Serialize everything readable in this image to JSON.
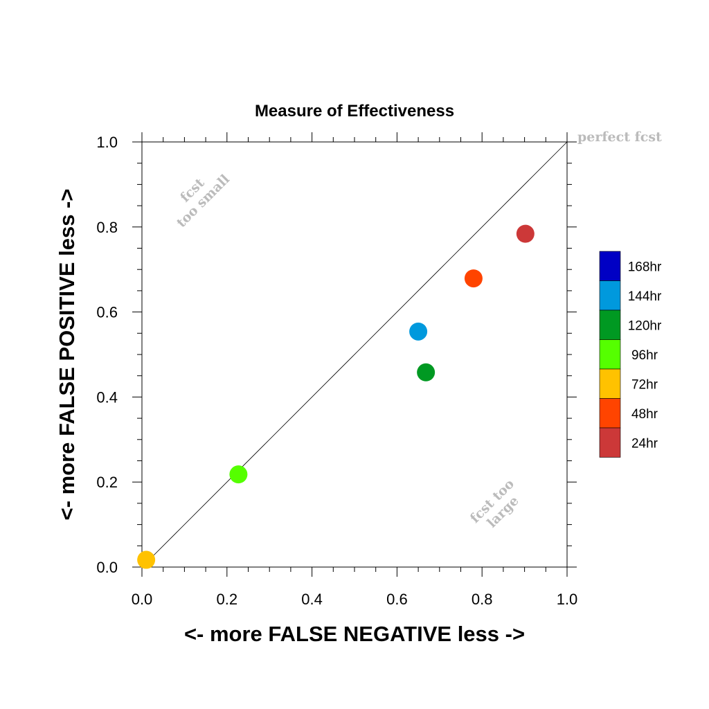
{
  "chart_data": {
    "type": "scatter",
    "title": "Measure of Effectiveness",
    "xlabel": "<- more   FALSE NEGATIVE   less ->",
    "ylabel": "<- more   FALSE POSITIVE   less ->",
    "xlim": [
      0,
      1
    ],
    "ylim": [
      0,
      1
    ],
    "xticks": [
      "0.0",
      "0.2",
      "0.4",
      "0.6",
      "0.8",
      "1.0"
    ],
    "yticks": [
      "0.0",
      "0.2",
      "0.4",
      "0.6",
      "0.8",
      "1.0"
    ],
    "grid": false,
    "diagonal": true,
    "annotations": {
      "perfect": "perfect fcst",
      "small_line1": "fcst",
      "small_line2": "too small",
      "large_line1": "fcst too",
      "large_line2": "large"
    },
    "legend": {
      "placement": "right",
      "entries": [
        {
          "label": "168hr",
          "color": "#0000c4"
        },
        {
          "label": "144hr",
          "color": "#0099dd"
        },
        {
          "label": "120hr",
          "color": "#009922"
        },
        {
          "label": "96hr",
          "color": "#55ff00"
        },
        {
          "label": "72hr",
          "color": "#ffc200"
        },
        {
          "label": "48hr",
          "color": "#ff4400"
        },
        {
          "label": "24hr",
          "color": "#cc3838"
        }
      ]
    },
    "points": [
      {
        "label": "24hr",
        "x": 0.902,
        "y": 0.784,
        "color": "#cc3838"
      },
      {
        "label": "48hr",
        "x": 0.78,
        "y": 0.679,
        "color": "#ff4400"
      },
      {
        "label": "72hr",
        "x": 0.01,
        "y": 0.017,
        "color": "#ffc200"
      },
      {
        "label": "96hr",
        "x": 0.227,
        "y": 0.218,
        "color": "#55ff00"
      },
      {
        "label": "120hr",
        "x": 0.668,
        "y": 0.458,
        "color": "#009922"
      },
      {
        "label": "144hr",
        "x": 0.65,
        "y": 0.554,
        "color": "#0099dd"
      }
    ]
  }
}
